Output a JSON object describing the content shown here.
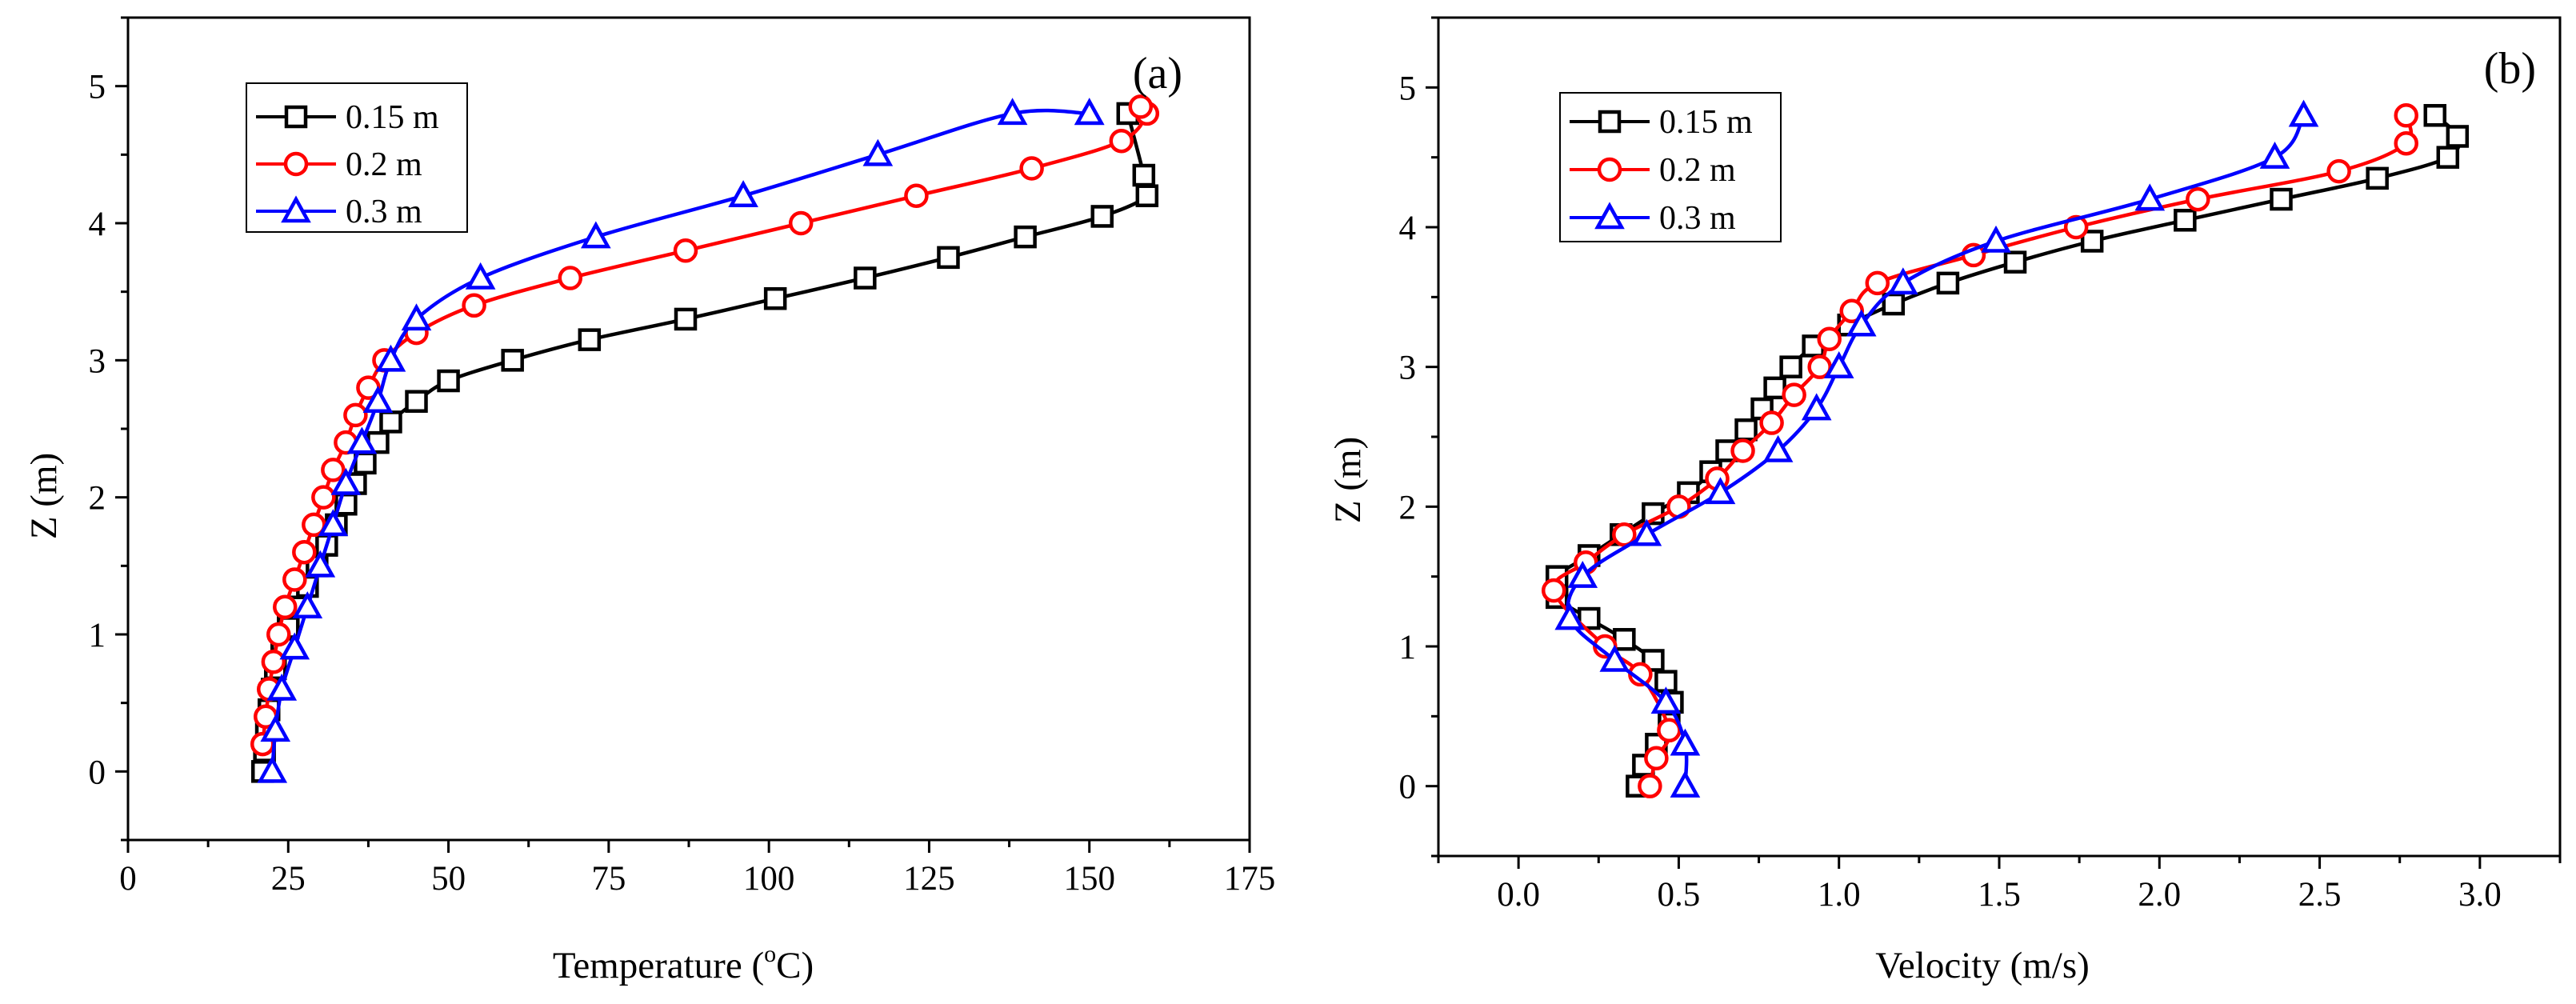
{
  "chart_data": [
    {
      "type": "line",
      "panel_label": "(a)",
      "xlabel": "Temperature",
      "xlabel_unit_open": " (",
      "xlabel_unit_sup": "o",
      "xlabel_unit_rest": "C)",
      "ylabel": "Z (m)",
      "xlim": [
        0,
        175
      ],
      "ylim": [
        -0.5,
        5.5
      ],
      "xticks": [
        0,
        25,
        50,
        75,
        100,
        125,
        150,
        175
      ],
      "xtick_labels": [
        "0",
        "25",
        "50",
        "75",
        "100",
        "125",
        "150",
        "175"
      ],
      "yticks": [
        0,
        1,
        2,
        3,
        4,
        5
      ],
      "ytick_labels": [
        "0",
        "1",
        "2",
        "3",
        "4",
        "5"
      ],
      "legend_position": "top-left",
      "series": [
        {
          "name": "0.15 m",
          "color": "#000000",
          "marker": "square",
          "x": [
            21,
            21.3,
            21.6,
            22,
            22.5,
            23,
            24,
            25,
            26.5,
            28,
            29.5,
            31,
            32.5,
            34,
            35.5,
            37,
            39,
            41,
            45,
            50,
            60,
            72,
            87,
            101,
            115,
            128,
            140,
            152,
            159,
            158.5,
            156
          ],
          "y": [
            0,
            0.15,
            0.3,
            0.45,
            0.6,
            0.75,
            0.9,
            1.05,
            1.2,
            1.35,
            1.5,
            1.65,
            1.8,
            1.95,
            2.1,
            2.25,
            2.4,
            2.55,
            2.7,
            2.85,
            3.0,
            3.15,
            3.3,
            3.45,
            3.6,
            3.75,
            3.9,
            4.05,
            4.2,
            4.35,
            4.8
          ]
        },
        {
          "name": "0.2 m",
          "color": "#ff0000",
          "marker": "circle",
          "x": [
            21,
            21.5,
            22,
            22.7,
            23.5,
            24.5,
            26,
            27.5,
            29,
            30.5,
            32,
            34,
            35.5,
            37.5,
            40,
            45,
            54,
            69,
            87,
            105,
            123,
            141,
            155,
            159,
            158
          ],
          "y": [
            0.2,
            0.4,
            0.6,
            0.8,
            1.0,
            1.2,
            1.4,
            1.6,
            1.8,
            2.0,
            2.2,
            2.4,
            2.6,
            2.8,
            3.0,
            3.2,
            3.4,
            3.6,
            3.8,
            4.0,
            4.2,
            4.4,
            4.6,
            4.8,
            4.85
          ]
        },
        {
          "name": "0.3 m",
          "color": "#0000ff",
          "marker": "triangle",
          "x": [
            22.5,
            23,
            24,
            26,
            28,
            30,
            32,
            34,
            36.5,
            39,
            41,
            45,
            55,
            73,
            96,
            117,
            138,
            150,
            150
          ],
          "y": [
            0,
            0.3,
            0.6,
            0.9,
            1.2,
            1.5,
            1.8,
            2.1,
            2.4,
            2.7,
            3.0,
            3.3,
            3.6,
            3.9,
            4.2,
            4.5,
            4.8,
            4.8,
            4.8
          ]
        }
      ]
    },
    {
      "type": "line",
      "panel_label": "(b)",
      "xlabel": "Velocity (m/s)",
      "ylabel": "Z (m)",
      "xlim": [
        -0.25,
        3.25
      ],
      "ylim": [
        -0.5,
        5.5
      ],
      "xticks": [
        0,
        0.5,
        1.0,
        1.5,
        2.0,
        2.5,
        3.0
      ],
      "xtick_labels": [
        "0.0",
        "0.5",
        "1.0",
        "1.5",
        "2.0",
        "2.5",
        "3.0"
      ],
      "yticks": [
        0,
        1,
        2,
        3,
        4,
        5
      ],
      "ytick_labels": [
        "0",
        "1",
        "2",
        "3",
        "4",
        "5"
      ],
      "legend_position": "top-left",
      "series": [
        {
          "name": "0.15 m",
          "color": "#000000",
          "marker": "square",
          "x": [
            0.37,
            0.39,
            0.43,
            0.47,
            0.48,
            0.46,
            0.42,
            0.33,
            0.22,
            0.12,
            0.12,
            0.22,
            0.32,
            0.42,
            0.53,
            0.6,
            0.65,
            0.71,
            0.76,
            0.8,
            0.85,
            0.92,
            1.03,
            1.17,
            1.34,
            1.55,
            1.79,
            2.08,
            2.38,
            2.68,
            2.9,
            2.93,
            2.86
          ],
          "y": [
            0,
            0.15,
            0.3,
            0.45,
            0.6,
            0.75,
            0.9,
            1.05,
            1.2,
            1.35,
            1.5,
            1.65,
            1.8,
            1.95,
            2.1,
            2.25,
            2.4,
            2.55,
            2.7,
            2.85,
            3.0,
            3.15,
            3.3,
            3.45,
            3.6,
            3.75,
            3.9,
            4.05,
            4.2,
            4.35,
            4.5,
            4.65,
            4.8
          ]
        },
        {
          "name": "0.2 m",
          "color": "#ff0000",
          "marker": "circle",
          "x": [
            0.41,
            0.43,
            0.47,
            0.38,
            0.27,
            0.11,
            0.21,
            0.33,
            0.5,
            0.62,
            0.7,
            0.79,
            0.86,
            0.94,
            0.97,
            1.04,
            1.12,
            1.42,
            1.74,
            2.12,
            2.56,
            2.77,
            2.77
          ],
          "y": [
            0,
            0.2,
            0.4,
            0.8,
            1.0,
            1.4,
            1.6,
            1.8,
            2.0,
            2.2,
            2.4,
            2.6,
            2.8,
            3.0,
            3.2,
            3.4,
            3.6,
            3.8,
            4.0,
            4.2,
            4.4,
            4.6,
            4.8
          ]
        },
        {
          "name": "0.3 m",
          "color": "#0000ff",
          "marker": "triangle",
          "x": [
            0.52,
            0.52,
            0.46,
            0.3,
            0.16,
            0.2,
            0.4,
            0.63,
            0.81,
            0.93,
            1.0,
            1.07,
            1.2,
            1.49,
            1.97,
            2.36,
            2.45
          ],
          "y": [
            0,
            0.3,
            0.6,
            0.9,
            1.2,
            1.5,
            1.8,
            2.1,
            2.4,
            2.7,
            3.0,
            3.3,
            3.6,
            3.9,
            4.2,
            4.5,
            4.8
          ]
        }
      ]
    }
  ]
}
